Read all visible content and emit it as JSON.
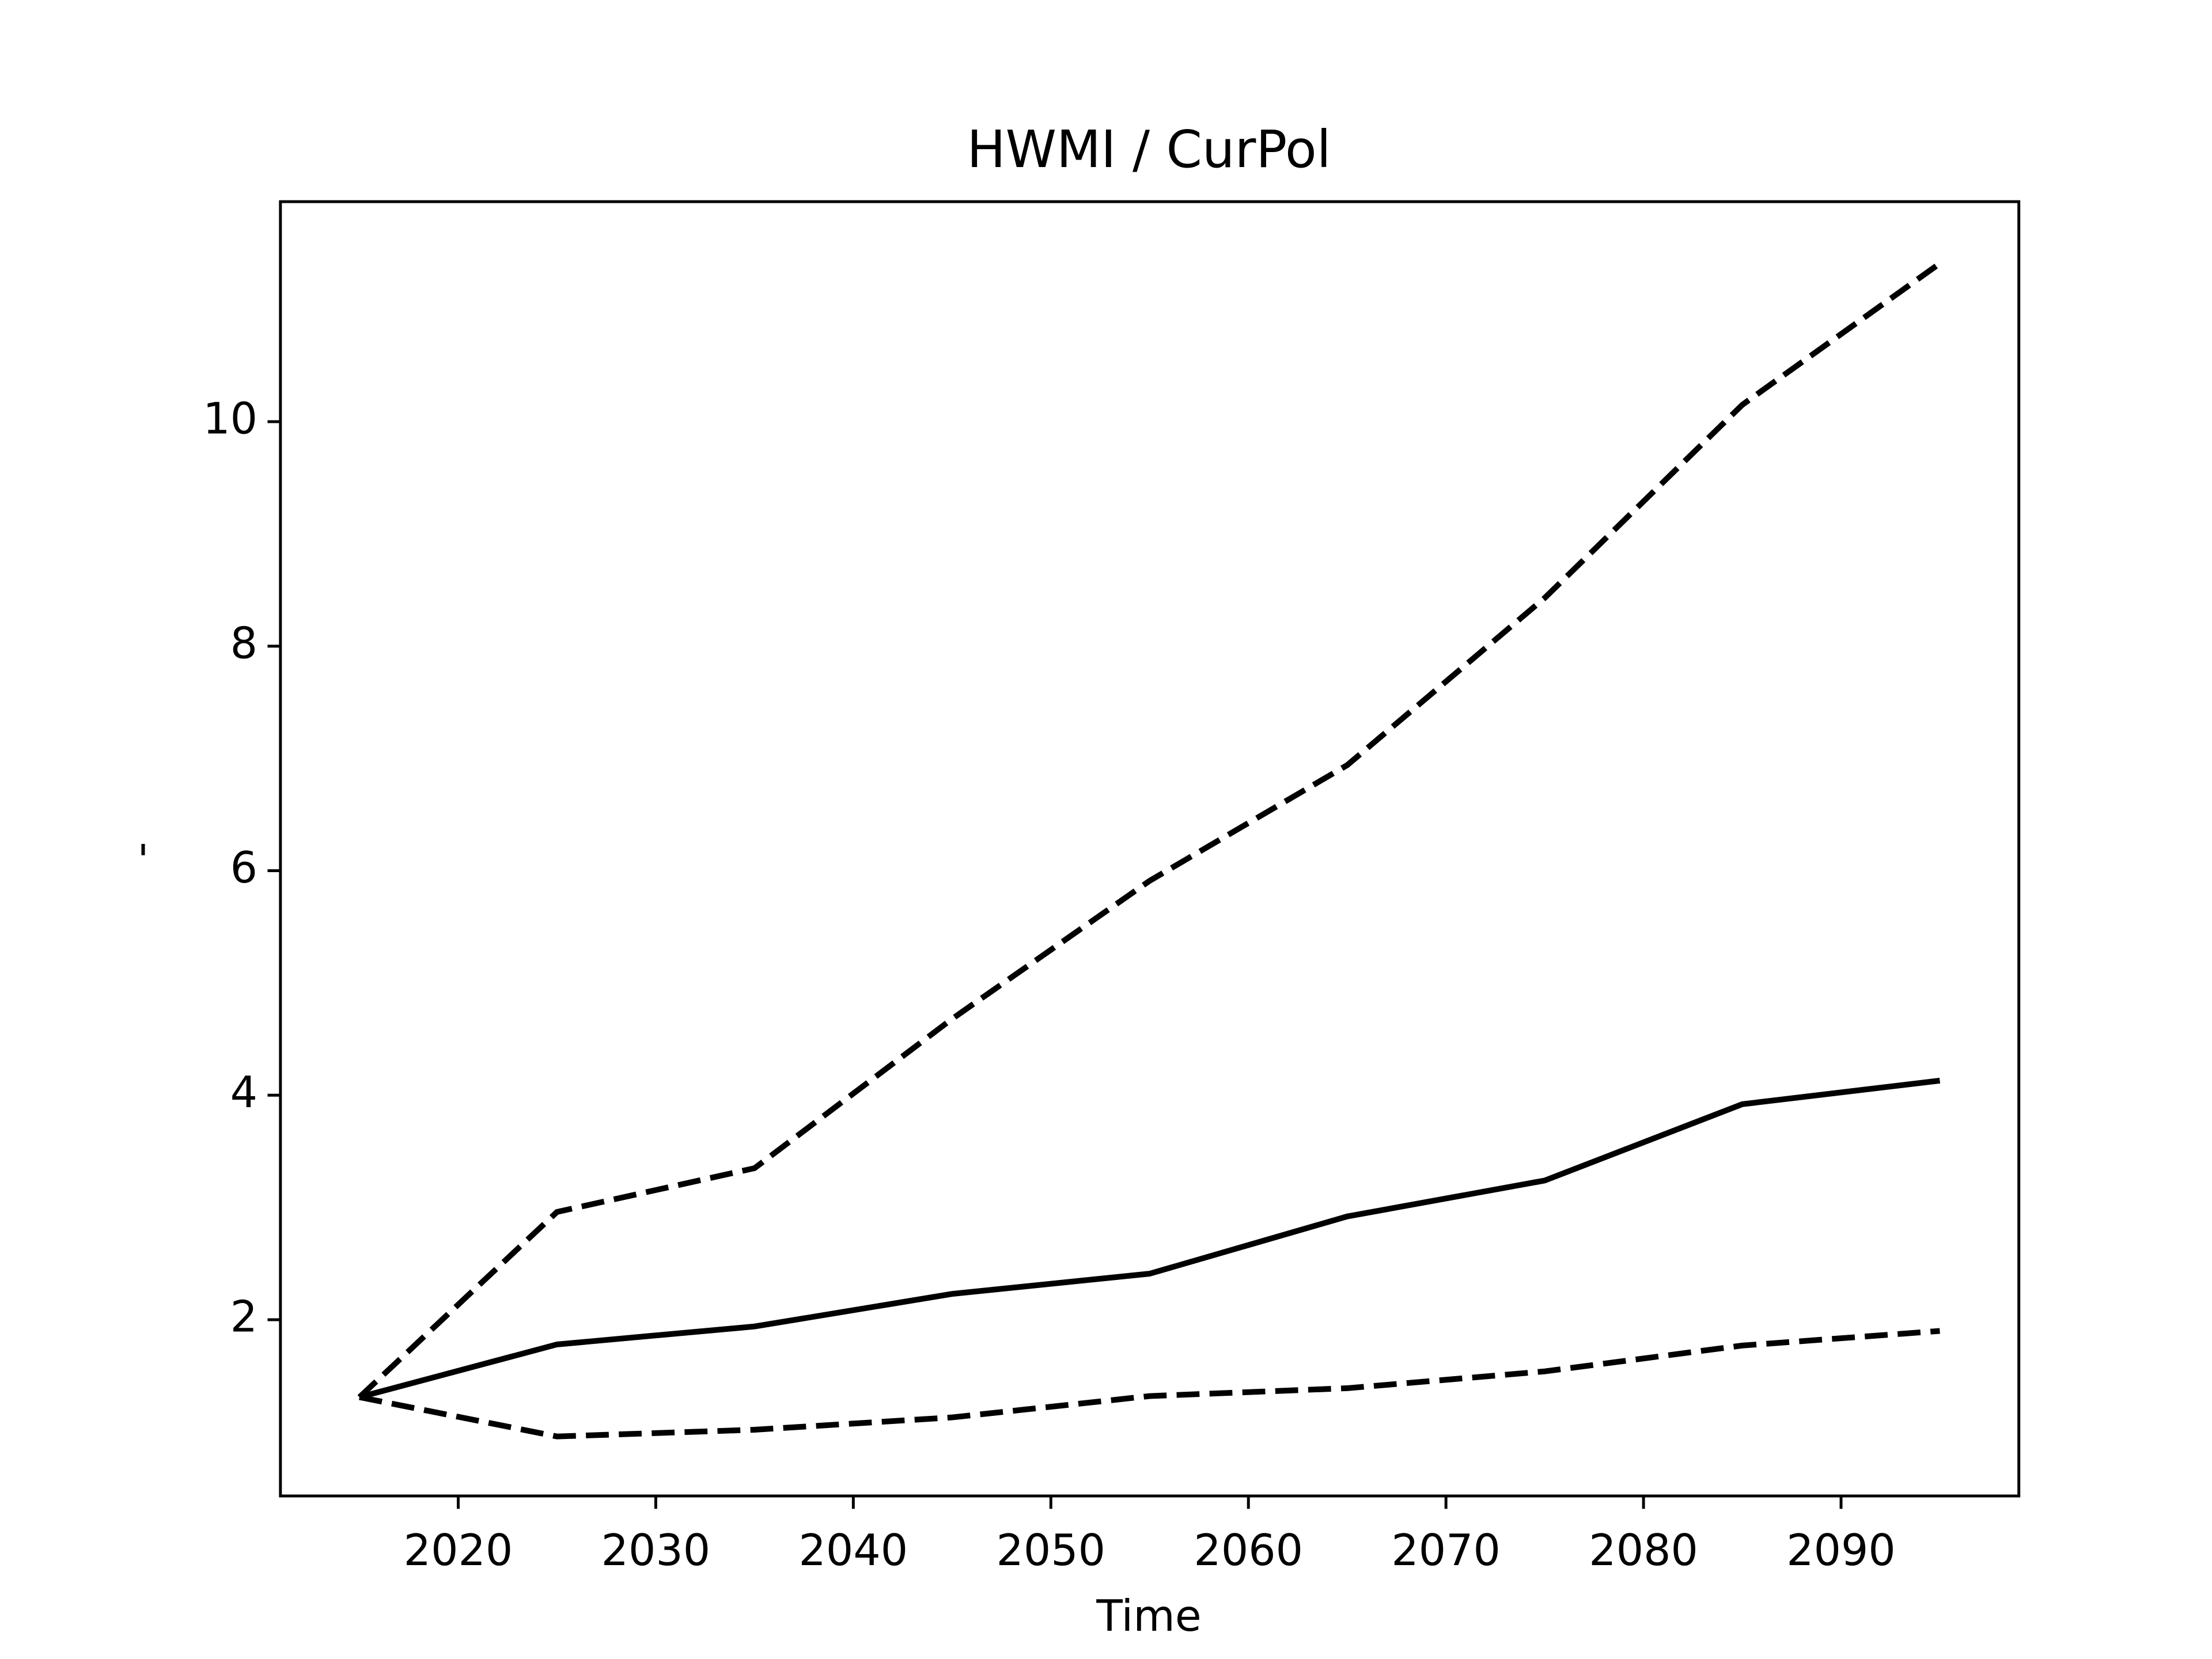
{
  "chart_data": {
    "type": "line",
    "title": "HWMI / CurPol",
    "xlabel": "Time",
    "ylabel": "-",
    "x": [
      2015,
      2025,
      2035,
      2045,
      2055,
      2065,
      2075,
      2085,
      2095
    ],
    "series": [
      {
        "color": "#000000",
        "linestyle": "solid",
        "values": [
          1.31,
          1.78,
          1.94,
          2.23,
          2.41,
          2.92,
          3.24,
          3.92,
          4.13
        ]
      },
      {
        "color": "#000000",
        "linestyle": "dashed",
        "values": [
          1.31,
          2.96,
          3.35,
          4.68,
          5.91,
          6.94,
          8.43,
          10.15,
          11.41
        ]
      },
      {
        "color": "#000000",
        "linestyle": "dashed",
        "values": [
          1.31,
          0.96,
          1.02,
          1.13,
          1.32,
          1.39,
          1.54,
          1.77,
          1.9
        ]
      }
    ],
    "xlim": [
      2011,
      2099
    ],
    "xticks": [
      2020,
      2030,
      2040,
      2050,
      2060,
      2070,
      2080,
      2090
    ],
    "ylim": [
      0.43,
      11.96
    ],
    "yticks": [
      2,
      4,
      6,
      8,
      10
    ],
    "grid": false
  }
}
